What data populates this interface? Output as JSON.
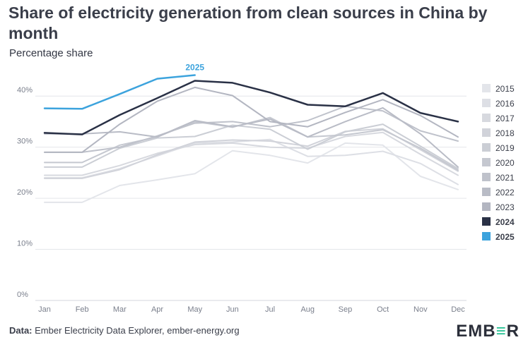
{
  "header": {
    "title": "Share of electricity generation from clean sources in China by month",
    "subtitle": "Percentage share"
  },
  "footer": {
    "source_label": "Data:",
    "source_text": "Ember Electricity Data Explorer, ember-energy.org",
    "logo_left": "EMB",
    "logo_mark": "≡",
    "logo_right": "R"
  },
  "colors": {
    "highlight_2025": "#3ca3dd",
    "highlight_2024": "#2a3146",
    "older_years": "#c5c8d0",
    "gridline": "#e4e6ea"
  },
  "chart_data": {
    "type": "line",
    "title": "Share of electricity generation from clean sources in China by month",
    "ylabel": "Percentage share",
    "xlabel": "",
    "categories": [
      "Jan",
      "Feb",
      "Mar",
      "Apr",
      "May",
      "Jun",
      "Jul",
      "Aug",
      "Sep",
      "Oct",
      "Nov",
      "Dec"
    ],
    "y_ticks": [
      0,
      10,
      20,
      30,
      40
    ],
    "y_tick_labels": [
      "0%",
      "10%",
      "20%",
      "30%",
      "40%"
    ],
    "ylim": [
      0,
      45
    ],
    "grid": true,
    "legend_position": "right",
    "annotation": "2025",
    "series": [
      {
        "name": "2015",
        "color": "#e3e5ea",
        "values": [
          19.2,
          19.2,
          22.5,
          23.6,
          24.8,
          29.3,
          28.4,
          26.9,
          30.8,
          30.4,
          24.3,
          21.7
        ]
      },
      {
        "name": "2016",
        "color": "#dddfe5",
        "values": [
          24.0,
          24.0,
          25.8,
          28.3,
          30.8,
          31.0,
          31.5,
          28.2,
          28.4,
          29.2,
          26.8,
          22.7
        ]
      },
      {
        "name": "2017",
        "color": "#d7d9df",
        "values": [
          24.5,
          24.5,
          26.4,
          28.8,
          30.5,
          30.8,
          30.0,
          29.8,
          32.1,
          32.9,
          28.6,
          24.5
        ]
      },
      {
        "name": "2018",
        "color": "#d1d3da",
        "values": [
          23.9,
          23.9,
          25.6,
          28.5,
          31.0,
          31.4,
          31.2,
          30.2,
          33.1,
          33.6,
          29.5,
          25.3
        ]
      },
      {
        "name": "2019",
        "color": "#cbced5",
        "values": [
          26.1,
          26.1,
          29.8,
          31.8,
          32.1,
          34.3,
          33.5,
          29.6,
          33.0,
          34.5,
          30.2,
          25.8
        ]
      },
      {
        "name": "2020",
        "color": "#c5c8d0",
        "values": [
          27.0,
          27.0,
          30.4,
          32.0,
          35.0,
          33.9,
          35.8,
          32.0,
          32.4,
          33.4,
          29.8,
          25.5
        ]
      },
      {
        "name": "2021",
        "color": "#bfc2cb",
        "values": [
          29.0,
          29.0,
          30.0,
          32.2,
          34.7,
          35.0,
          34.0,
          35.2,
          38.0,
          37.1,
          33.2,
          31.2
        ]
      },
      {
        "name": "2022",
        "color": "#b9bcc6",
        "values": [
          32.6,
          32.6,
          33.0,
          32.0,
          35.2,
          34.0,
          35.5,
          32.0,
          35.0,
          37.7,
          32.6,
          26.1
        ]
      },
      {
        "name": "2023",
        "color": "#b3b6c1",
        "values": [
          29.0,
          29.0,
          34.5,
          39.0,
          41.7,
          40.1,
          35.0,
          34.0,
          36.8,
          39.3,
          36.2,
          32.0
        ]
      },
      {
        "name": "2024",
        "color": "#2a3146",
        "values": [
          32.8,
          32.5,
          36.3,
          39.6,
          43.0,
          42.6,
          40.7,
          38.3,
          38.0,
          40.6,
          36.7,
          35.0
        ]
      },
      {
        "name": "2025",
        "color": "#3ca3dd",
        "values": [
          37.6,
          37.5,
          40.4,
          43.4,
          44.1,
          null,
          null,
          null,
          null,
          null,
          null,
          null
        ]
      }
    ]
  }
}
